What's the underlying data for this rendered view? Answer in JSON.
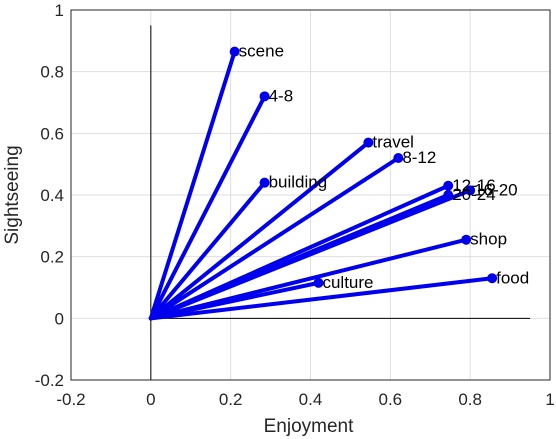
{
  "chart_data": {
    "type": "line",
    "title": "",
    "xlabel": "Enjoyment",
    "ylabel": "Sightseeing",
    "xlim": [
      -0.2,
      1
    ],
    "ylim": [
      -0.2,
      1
    ],
    "grid": true,
    "x_ticks": [
      -0.2,
      0,
      0.2,
      0.4,
      0.6,
      0.8,
      1
    ],
    "y_ticks": [
      -0.2,
      0,
      0.2,
      0.4,
      0.6,
      0.8,
      1
    ],
    "x_tick_labels": [
      "-0.2",
      "0",
      "0.2",
      "0.4",
      "0.6",
      "0.8",
      "1"
    ],
    "y_tick_labels": [
      "-0.2",
      "0",
      "0.2",
      "0.4",
      "0.6",
      "0.8",
      "1"
    ],
    "origin": [
      0,
      0
    ],
    "reference_lines": {
      "horizontal": {
        "y": 0,
        "x_range": [
          0,
          0.95
        ]
      },
      "vertical": {
        "x": 0,
        "y_range": [
          -0.2,
          0.95
        ]
      }
    },
    "color": "#0000ee",
    "points": [
      {
        "label": "scene",
        "x": 0.21,
        "y": 0.865
      },
      {
        "label": "4-8",
        "x": 0.285,
        "y": 0.72
      },
      {
        "label": "travel",
        "x": 0.545,
        "y": 0.57
      },
      {
        "label": "8-12",
        "x": 0.62,
        "y": 0.52
      },
      {
        "label": "building",
        "x": 0.285,
        "y": 0.44
      },
      {
        "label": "12-16",
        "x": 0.745,
        "y": 0.43
      },
      {
        "label": "16-20",
        "x": 0.8,
        "y": 0.415
      },
      {
        "label": "20-24",
        "x": 0.745,
        "y": 0.4
      },
      {
        "label": "shop",
        "x": 0.79,
        "y": 0.255
      },
      {
        "label": "food",
        "x": 0.855,
        "y": 0.13
      },
      {
        "label": "culture",
        "x": 0.42,
        "y": 0.115
      }
    ]
  }
}
